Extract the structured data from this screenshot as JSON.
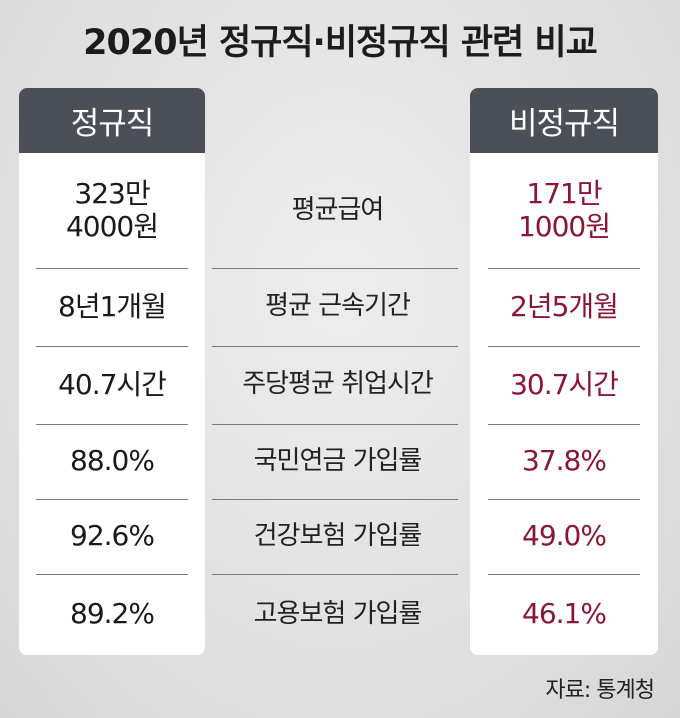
{
  "title": "2020년 정규직·비정규직 관련 비교",
  "source": "자료: 통계청",
  "chart_data": {
    "type": "table",
    "columns": [
      "정규직",
      "",
      "비정규직"
    ],
    "rows": [
      {
        "label": "평균급여",
        "regular": [
          "323만",
          "4000원"
        ],
        "nonregular": [
          "171만",
          "1000원"
        ]
      },
      {
        "label": "평균 근속기간",
        "regular": "8년1개월",
        "nonregular": "2년5개월"
      },
      {
        "label": "주당평균 취업시간",
        "regular": "40.7시간",
        "nonregular": "30.7시간"
      },
      {
        "label": "국민연금 가입률",
        "regular": "88.0%",
        "nonregular": "37.8%"
      },
      {
        "label": "건강보험 가입률",
        "regular": "92.6%",
        "nonregular": "49.0%"
      },
      {
        "label": "고용보험 가입률",
        "regular": "89.2%",
        "nonregular": "46.1%"
      }
    ]
  },
  "colors": {
    "header_bg": "#4b4f57",
    "nonregular_text": "#8b1535"
  }
}
